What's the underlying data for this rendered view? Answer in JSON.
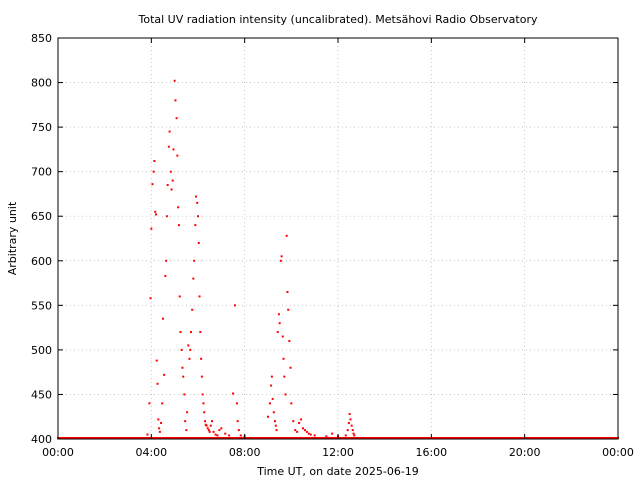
{
  "chart_data": {
    "type": "scatter",
    "title": "Total UV radiation intensity (uncalibrated). Metsähovi Radio Observatory",
    "xlabel": "Time UT, on date 2025-06-19",
    "ylabel": "Arbitrary unit",
    "xlim": [
      "00:00",
      "24:00"
    ],
    "ylim": [
      400,
      850
    ],
    "x_ticks": [
      "00:00",
      "04:00",
      "08:00",
      "12:00",
      "16:00",
      "20:00",
      "00:00"
    ],
    "y_ticks": [
      400,
      450,
      500,
      550,
      600,
      650,
      700,
      750,
      800,
      850
    ],
    "grid": true,
    "legend": "none",
    "colors": {
      "points": "#ff0000"
    },
    "series": [
      {
        "x": [
          "03:50",
          "03:55",
          "03:58",
          "04:00",
          "04:03",
          "04:06",
          "04:08",
          "04:10",
          "04:12",
          "04:14",
          "04:16",
          "04:18",
          "04:20",
          "04:22",
          "04:25",
          "04:28",
          "04:30",
          "04:33",
          "04:36",
          "04:38",
          "04:40",
          "04:42",
          "04:45",
          "04:47",
          "04:50",
          "04:52",
          "04:55",
          "04:57",
          "05:00",
          "05:02",
          "05:05",
          "05:07",
          "05:09",
          "05:11",
          "05:13",
          "05:15",
          "05:18",
          "05:20",
          "05:22",
          "05:25",
          "05:27",
          "05:30",
          "05:32",
          "05:35",
          "05:38",
          "05:40",
          "05:42",
          "05:45",
          "05:48",
          "05:50",
          "05:53",
          "05:55",
          "05:58",
          "06:00",
          "06:02",
          "06:04",
          "06:06",
          "06:08",
          "06:10",
          "06:12",
          "06:14",
          "06:16",
          "06:18",
          "06:20",
          "06:22",
          "06:25",
          "06:28",
          "06:30",
          "06:33",
          "06:36",
          "06:40",
          "06:45",
          "06:50",
          "06:55",
          "07:00",
          "07:10",
          "07:20",
          "07:30",
          "07:35",
          "07:40",
          "07:42",
          "07:45",
          "07:50",
          "08:00",
          "09:00",
          "09:05",
          "09:08",
          "09:10",
          "09:12",
          "09:15",
          "09:18",
          "09:20",
          "09:22",
          "09:25",
          "09:28",
          "09:30",
          "09:33",
          "09:35",
          "09:38",
          "09:40",
          "09:42",
          "09:45",
          "09:48",
          "09:50",
          "09:52",
          "09:55",
          "09:58",
          "10:00",
          "10:05",
          "10:10",
          "10:15",
          "10:20",
          "10:25",
          "10:30",
          "10:35",
          "10:40",
          "10:45",
          "10:50",
          "11:00",
          "11:30",
          "11:45",
          "12:00",
          "12:20",
          "12:25",
          "12:28",
          "12:30",
          "12:32",
          "12:35",
          "12:38",
          "12:40",
          "12:42"
        ],
        "y": [
          405,
          440,
          558,
          636,
          686,
          700,
          712,
          655,
          652,
          488,
          462,
          422,
          412,
          408,
          418,
          440,
          535,
          472,
          583,
          600,
          650,
          685,
          728,
          745,
          700,
          680,
          690,
          725,
          802,
          780,
          760,
          718,
          660,
          640,
          560,
          520,
          500,
          480,
          470,
          450,
          420,
          410,
          430,
          505,
          490,
          500,
          520,
          545,
          580,
          600,
          640,
          672,
          665,
          650,
          620,
          560,
          520,
          490,
          470,
          450,
          440,
          430,
          420,
          416,
          415,
          412,
          410,
          408,
          415,
          420,
          408,
          405,
          404,
          410,
          412,
          406,
          404,
          451,
          550,
          440,
          420,
          410,
          404,
          403,
          425,
          440,
          460,
          470,
          445,
          430,
          420,
          415,
          410,
          520,
          540,
          530,
          600,
          605,
          515,
          490,
          470,
          450,
          628,
          565,
          545,
          510,
          480,
          440,
          420,
          410,
          408,
          418,
          422,
          412,
          410,
          408,
          406,
          405,
          404,
          403,
          406,
          403,
          404,
          410,
          418,
          428,
          422,
          415,
          410,
          406,
          404
        ]
      }
    ]
  }
}
